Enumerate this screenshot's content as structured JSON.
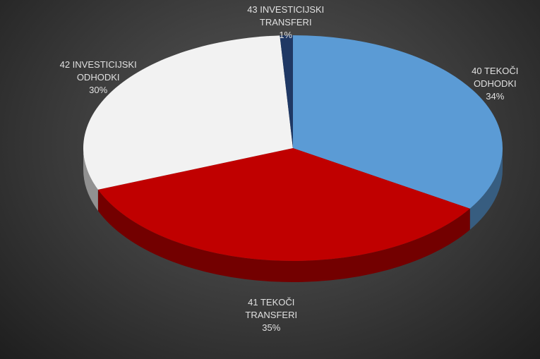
{
  "chart_data": {
    "type": "pie3d",
    "categories": [
      "40 TEKOČI ODHODKI",
      "41 TEKOČI TRANSFERI",
      "42 INVESTICIJSKI ODHODKI",
      "43 INVESTICIJSKI TRANSFERI"
    ],
    "values": [
      34,
      35,
      30,
      1
    ],
    "value_labels": [
      "34%",
      "35%",
      "30%",
      "1%"
    ],
    "colors": [
      "#5b9bd5",
      "#c00000",
      "#f2f2f2",
      "#1f3864"
    ]
  }
}
